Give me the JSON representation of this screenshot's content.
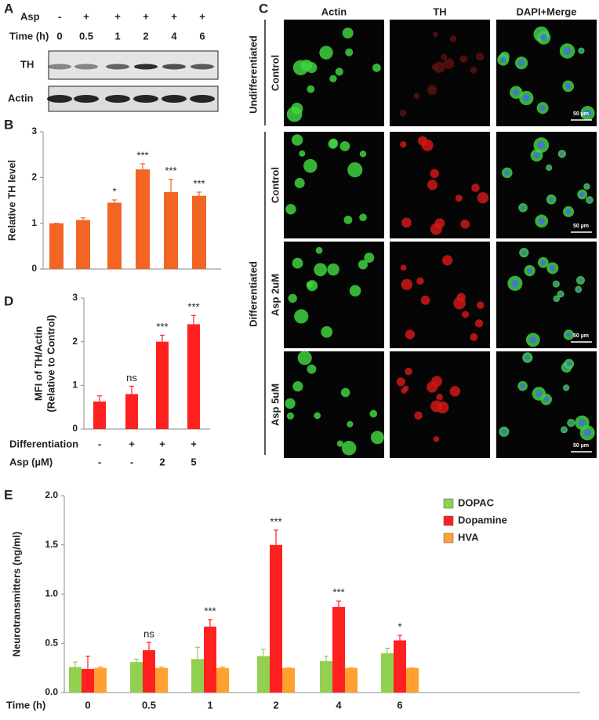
{
  "panel_labels": [
    "A",
    "B",
    "C",
    "D",
    "E"
  ],
  "blot": {
    "asp_label": "Asp",
    "asp": [
      "-",
      "+",
      "+",
      "+",
      "+",
      "+"
    ],
    "time_label": "Time (h)",
    "time": [
      "0",
      "0.5",
      "1",
      "2",
      "4",
      "6"
    ],
    "rows": [
      "TH",
      "Actin"
    ]
  },
  "imaging": {
    "columns": [
      "Actin",
      "TH",
      "DAPI+Merge"
    ],
    "groups": [
      "Undifferentiated",
      "Differentiated"
    ],
    "rows": [
      "Control",
      "Control",
      "Asp 2uM",
      "Asp 5uM"
    ],
    "scale_bar": "50 µm"
  },
  "chart_data": [
    {
      "type": "bar",
      "ylabel": "Relative TH level",
      "color": "#f26522",
      "values": [
        1.0,
        1.07,
        1.45,
        2.18,
        1.68,
        1.6
      ],
      "errors": [
        0,
        0.05,
        0.06,
        0.12,
        0.28,
        0.08
      ],
      "significance": [
        null,
        null,
        "*",
        "***",
        "***",
        "***"
      ],
      "ylim": [
        0,
        3
      ],
      "yticks": [
        0,
        1,
        2,
        3
      ]
    },
    {
      "type": "bar",
      "ylabel": [
        "MFI of TH/Actin",
        "(Relative to Control)"
      ],
      "color": "#ff2020",
      "values": [
        0.63,
        0.8,
        2.0,
        2.4
      ],
      "errors": [
        0.13,
        0.18,
        0.15,
        0.2
      ],
      "significance": [
        null,
        "ns",
        "***",
        "***"
      ],
      "conditions": [
        {
          "label": "Differentiation",
          "values": [
            "-",
            "+",
            "+",
            "+"
          ]
        },
        {
          "label": "Asp (µM)",
          "values": [
            "-",
            "-",
            "2",
            "5"
          ]
        }
      ],
      "ylim": [
        0,
        3
      ],
      "yticks": [
        0,
        1,
        2,
        3
      ]
    },
    {
      "type": "grouped-bar",
      "ylabel": "Neurotransmitters (ng/ml)",
      "xlabel": "Time (h)",
      "categories": [
        "0",
        "0.5",
        "1",
        "2",
        "4",
        "6"
      ],
      "series": [
        {
          "name": "DOPAC",
          "color": "#92d050",
          "values": [
            0.26,
            0.31,
            0.34,
            0.37,
            0.32,
            0.4
          ],
          "errors": [
            0.05,
            0.03,
            0.12,
            0.07,
            0.05,
            0.05
          ]
        },
        {
          "name": "Dopamine",
          "color": "#ff2020",
          "values": [
            0.24,
            0.43,
            0.67,
            1.5,
            0.87,
            0.53
          ],
          "errors": [
            0.13,
            0.08,
            0.07,
            0.15,
            0.06,
            0.05
          ],
          "significance": [
            null,
            "ns",
            "***",
            "***",
            "***",
            "*"
          ]
        },
        {
          "name": "HVA",
          "color": "#ffa030",
          "values": [
            0.25,
            0.25,
            0.25,
            0.25,
            0.25,
            0.25
          ],
          "errors": [
            0.01,
            0.01,
            0.01,
            0,
            0,
            0
          ]
        }
      ],
      "ylim": [
        0,
        2
      ],
      "yticks": [
        {
          "value": 0,
          "label": "0.0"
        },
        {
          "value": 0.5,
          "label": "0.5"
        },
        {
          "value": 1,
          "label": "1.0"
        },
        {
          "value": 1.5,
          "label": "1.5"
        },
        {
          "value": 2,
          "label": "2.0"
        }
      ]
    }
  ]
}
